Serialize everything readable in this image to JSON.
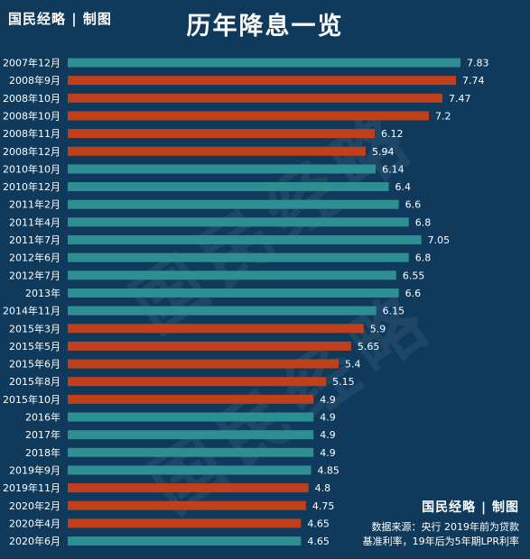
{
  "header": {
    "brand": "国民经略 | 制图",
    "title": "历年降息一览"
  },
  "footer": {
    "brand": "国民经略 | 制图",
    "source_line1": "数据来源：央行  2019年前为贷款",
    "source_line2": "基准利率，19年后为5年期LPR利率"
  },
  "watermark": "国民经略",
  "colors": {
    "background": "#0f3a5c",
    "rate_up": "#2e8f93",
    "rate_down": "#c0401c",
    "text": "#ffffff"
  },
  "chart_data": {
    "type": "bar",
    "orientation": "horizontal",
    "title": "历年降息一览",
    "categories": [
      "2007年12月",
      "2008年9月",
      "2008年10月",
      "2008年10月",
      "2008年11月",
      "2008年12月",
      "2010年10月",
      "2010年12月",
      "2011年2月",
      "2011年4月",
      "2011年7月",
      "2012年6月",
      "2012年7月",
      "2013年",
      "2014年11月",
      "2015年3月",
      "2015年5月",
      "2015年6月",
      "2015年8月",
      "2015年10月",
      "2016年",
      "2017年",
      "2018年",
      "2019年9月",
      "2019年11月",
      "2020年2月",
      "2020年4月",
      "2020年6月"
    ],
    "values": [
      7.83,
      7.74,
      7.47,
      7.2,
      6.12,
      5.94,
      6.14,
      6.4,
      6.6,
      6.8,
      7.05,
      6.8,
      6.55,
      6.6,
      6.15,
      5.9,
      5.65,
      5.4,
      5.15,
      4.9,
      4.9,
      4.9,
      4.9,
      4.85,
      4.8,
      4.75,
      4.65,
      4.65
    ],
    "value_labels": [
      "7.83",
      "7.74",
      "7.47",
      "7.2",
      "6.12",
      "5.94",
      "6.14",
      "6.4",
      "6.6",
      "6.8",
      "7.05",
      "6.8",
      "6.55",
      "6.6",
      "6.15",
      "5.9",
      "5.65",
      "5.4",
      "5.15",
      "4.9",
      "4.9",
      "4.9",
      "4.9",
      "4.85",
      "4.8",
      "4.75",
      "4.65",
      "4.65"
    ],
    "bar_colors": [
      "teal",
      "red",
      "red",
      "red",
      "red",
      "red",
      "teal",
      "teal",
      "teal",
      "teal",
      "teal",
      "teal",
      "teal",
      "teal",
      "teal",
      "red",
      "red",
      "red",
      "red",
      "red",
      "teal",
      "teal",
      "teal",
      "teal",
      "red",
      "red",
      "red",
      "teal"
    ],
    "xlim": [
      0,
      7.83
    ],
    "grid": false,
    "legend": "none"
  }
}
